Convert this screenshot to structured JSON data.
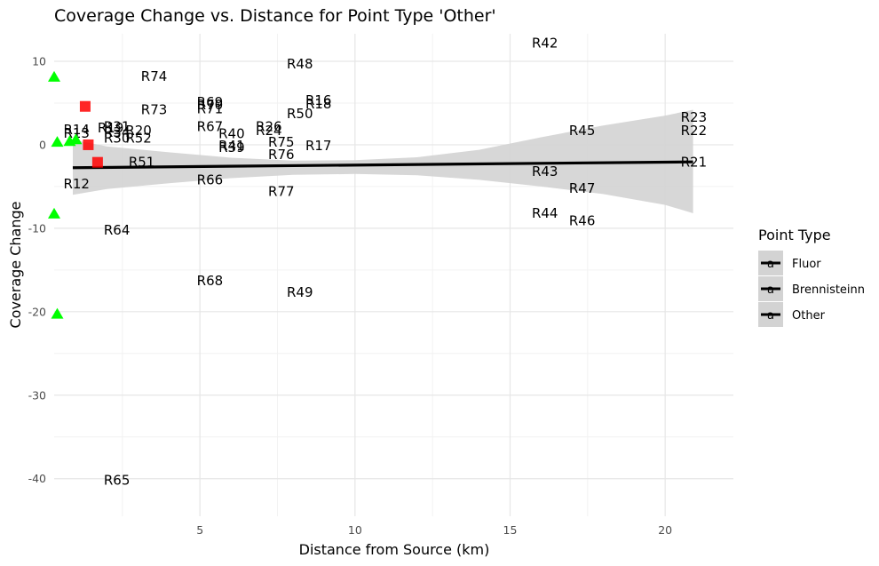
{
  "chart_data": {
    "type": "scatter",
    "title": "Coverage Change vs. Distance for Point Type 'Other'",
    "xlabel": "Distance from Source (km)",
    "ylabel": "Coverage Change",
    "xlim": [
      0.3,
      22.2
    ],
    "ylim": [
      -44.5,
      13.3
    ],
    "x_ticks": [
      5,
      10,
      15,
      20
    ],
    "y_ticks": [
      10,
      0,
      -10,
      -20,
      -30,
      -40
    ],
    "grid": true,
    "legend": {
      "title": "Point Type",
      "placement": "right",
      "entries": [
        "Fluor",
        "Brennisteinn",
        "Other"
      ],
      "key_glyph": "a"
    },
    "colors": {
      "fluor": "#00ff00",
      "brennisteinn": "#ff0000",
      "other": "#000000",
      "trend": "#000000",
      "ribbon": "#d3d3d3"
    },
    "trend_line": {
      "x": [
        0.9,
        20.9
      ],
      "y": [
        -2.75,
        -2.05
      ]
    },
    "confidence_band": {
      "x": [
        0.9,
        2.0,
        4.0,
        6.0,
        8.0,
        10.0,
        12.0,
        14.0,
        16.0,
        18.0,
        20.0,
        20.9
      ],
      "lower": [
        -6.0,
        -5.3,
        -4.6,
        -4.0,
        -3.6,
        -3.5,
        -3.65,
        -4.2,
        -5.0,
        -5.9,
        -7.2,
        -8.2
      ],
      "upper": [
        0.6,
        -0.2,
        -0.9,
        -1.55,
        -1.9,
        -1.85,
        -1.5,
        -0.6,
        0.9,
        2.3,
        3.5,
        4.2
      ]
    },
    "series": [
      {
        "name": "Fluor",
        "marker": "triangle",
        "points": [
          [
            0.3,
            8.1
          ],
          [
            0.3,
            -8.3
          ],
          [
            0.4,
            -20.3
          ],
          [
            0.4,
            0.3
          ],
          [
            0.8,
            0.4
          ],
          [
            1.0,
            0.6
          ]
        ]
      },
      {
        "name": "Brennisteinn",
        "marker": "square",
        "points": [
          [
            1.3,
            4.6
          ],
          [
            1.4,
            0.0
          ],
          [
            1.7,
            -2.1
          ]
        ]
      },
      {
        "name": "Other",
        "marker": "label",
        "labels": [
          {
            "text": "R42",
            "x": 15.7,
            "y": 12.2,
            "tone": "dark"
          },
          {
            "text": "R74",
            "x": 3.1,
            "y": 8.2,
            "tone": "dark"
          },
          {
            "text": "R48",
            "x": 7.8,
            "y": 9.7,
            "tone": "dark"
          },
          {
            "text": "R69",
            "x": 4.9,
            "y": 5.1,
            "tone": "dark"
          },
          {
            "text": "R70",
            "x": 4.9,
            "y": 4.8,
            "tone": "dark"
          },
          {
            "text": "R71",
            "x": 4.9,
            "y": 4.3,
            "tone": "dark"
          },
          {
            "text": "R73",
            "x": 3.1,
            "y": 4.2,
            "tone": "dark"
          },
          {
            "text": "R16",
            "x": 8.4,
            "y": 5.3,
            "tone": "dark"
          },
          {
            "text": "R18",
            "x": 8.4,
            "y": 4.9,
            "tone": "dark"
          },
          {
            "text": "R50",
            "x": 7.8,
            "y": 3.7,
            "tone": "dark"
          },
          {
            "text": "R31",
            "x": 1.9,
            "y": 2.2,
            "tone": "dark"
          },
          {
            "text": "R19",
            "x": 1.7,
            "y": 2.0,
            "tone": "dark"
          },
          {
            "text": "R34",
            "x": 1.9,
            "y": 1.5,
            "tone": "dark"
          },
          {
            "text": "R20",
            "x": 2.6,
            "y": 1.7,
            "tone": "dark"
          },
          {
            "text": "R67",
            "x": 4.9,
            "y": 2.2,
            "tone": "dark"
          },
          {
            "text": "R26",
            "x": 6.8,
            "y": 2.2,
            "tone": "dark"
          },
          {
            "text": "R24",
            "x": 6.8,
            "y": 1.7,
            "tone": "dark"
          },
          {
            "text": "R40",
            "x": 5.6,
            "y": 1.3,
            "tone": "dark"
          },
          {
            "text": "R14",
            "x": 0.6,
            "y": 1.8,
            "tone": "dark"
          },
          {
            "text": "R13",
            "x": 0.6,
            "y": 1.4,
            "tone": "dark"
          },
          {
            "text": "R30",
            "x": 1.9,
            "y": 0.8,
            "tone": "dark"
          },
          {
            "text": "R52",
            "x": 2.6,
            "y": 0.8,
            "tone": "dark"
          },
          {
            "text": "R41",
            "x": 5.6,
            "y": -0.1,
            "tone": "dark"
          },
          {
            "text": "R39",
            "x": 5.6,
            "y": -0.3,
            "tone": "dark"
          },
          {
            "text": "R75",
            "x": 7.2,
            "y": 0.3,
            "tone": "dark"
          },
          {
            "text": "R17",
            "x": 8.4,
            "y": -0.1,
            "tone": "dark"
          },
          {
            "text": "R76",
            "x": 7.2,
            "y": -1.2,
            "tone": "muted"
          },
          {
            "text": "R45",
            "x": 16.9,
            "y": 1.7,
            "tone": "muted"
          },
          {
            "text": "R23",
            "x": 20.5,
            "y": 3.3,
            "tone": "muted"
          },
          {
            "text": "R22",
            "x": 20.5,
            "y": 1.7,
            "tone": "muted"
          },
          {
            "text": "R21",
            "x": 20.5,
            "y": -2.1,
            "tone": "dark"
          },
          {
            "text": "R51",
            "x": 2.7,
            "y": -2.1,
            "tone": "muted"
          },
          {
            "text": "R43",
            "x": 15.7,
            "y": -3.2,
            "tone": "muted"
          },
          {
            "text": "R12",
            "x": 0.6,
            "y": -4.7,
            "tone": "muted"
          },
          {
            "text": "R66",
            "x": 4.9,
            "y": -4.2,
            "tone": "muted"
          },
          {
            "text": "R47",
            "x": 16.9,
            "y": -5.2,
            "tone": "muted"
          },
          {
            "text": "R77",
            "x": 7.2,
            "y": -5.6,
            "tone": "dark"
          },
          {
            "text": "R44",
            "x": 15.7,
            "y": -8.2,
            "tone": "dark"
          },
          {
            "text": "R46",
            "x": 16.9,
            "y": -9.1,
            "tone": "dark"
          },
          {
            "text": "R64",
            "x": 1.9,
            "y": -10.2,
            "tone": "dark"
          },
          {
            "text": "R68",
            "x": 4.9,
            "y": -16.3,
            "tone": "dark"
          },
          {
            "text": "R49",
            "x": 7.8,
            "y": -17.7,
            "tone": "dark"
          },
          {
            "text": "R65",
            "x": 1.9,
            "y": -40.2,
            "tone": "dark"
          }
        ]
      }
    ]
  }
}
